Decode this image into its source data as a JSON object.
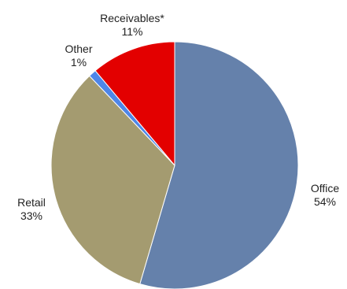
{
  "chart_data": {
    "type": "pie",
    "title": "",
    "categories": [
      "Office",
      "Retail",
      "Other",
      "Receivables*"
    ],
    "values": [
      54,
      33,
      1,
      11
    ],
    "value_labels": [
      "54%",
      "33%",
      "1%",
      "11%"
    ],
    "colors": [
      "#6581ab",
      "#a49b70",
      "#4f86e8",
      "#e30000"
    ],
    "legend": "none",
    "start": "top",
    "direction": "clockwise"
  }
}
